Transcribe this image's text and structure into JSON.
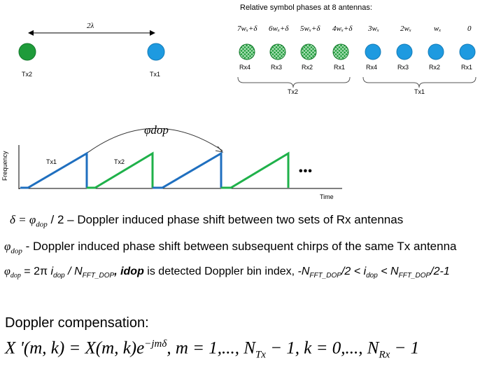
{
  "top_left": {
    "distance_label": "2λ",
    "tx2_label": "Tx2",
    "tx1_label": "Tx1",
    "tx2_color": "#1e9b3a",
    "tx1_color": "#1e9ae0"
  },
  "phases": {
    "title": "Relative symbol phases at 8 antennas:",
    "values": [
      "7wₓ+δ",
      "6wₓ+δ",
      "5wₓ+δ",
      "4wₓ+δ",
      "3wₓ",
      "2wₓ",
      "wₓ",
      "0"
    ],
    "rx_labels": [
      "Rx4",
      "Rx3",
      "Rx2",
      "Rx1",
      "Rx4",
      "Rx3",
      "Rx2",
      "Rx1"
    ],
    "group_tx2": "Tx2",
    "group_tx1": "Tx1",
    "tx2_color": "#1e9b3a",
    "tx1_color": "#1e9ae0"
  },
  "chirp": {
    "phi_label": "φdop",
    "y_axis": "Frequency",
    "x_axis": "Time",
    "tx1_label": "Tx1",
    "tx2_label": "Tx2",
    "ellipsis": "•••",
    "tx1_color": "#1f6fbf",
    "tx2_color": "#1fb14a"
  },
  "equations": {
    "line1_lhs": "δ = φ",
    "line1_sub": "dop",
    "line1_rest": "/ 2 – Doppler induced phase shift between two sets of Rx antennas",
    "line2_sym": "φ",
    "line2_sub": "dop",
    "line2_rest": " - Doppler induced phase shift between subsequent chirps of the same Tx antenna",
    "line3_a": "φ",
    "line3_a_sub": "dop",
    "line3_b": " = 2π ",
    "line3_idop": "i",
    "line3_idop_sub": "dop",
    "line3_c": " / N",
    "line3_c_sub": "FFT_DOP",
    "line3_d": ", idop",
    "line3_e": " is detected Doppler bin index, ",
    "line3_f": "-N",
    "line3_f_sub": "FFT_DOP",
    "line3_g": "/2 < i",
    "line3_g_sub": "dop",
    "line3_h": " < N",
    "line3_h_sub": "FFT_DOP",
    "line3_i": "/2-1"
  },
  "compensation": {
    "title": "Doppler compensation:",
    "formula": "X '(m, k) = X(m, k)e",
    "exponent": "−jmδ",
    "formula_rest": ", m = 1,...,  N",
    "sub_tx": "Tx",
    "formula_mid": " − 1, k = 0,...,  N",
    "sub_rx": "Rx",
    "formula_end": " − 1"
  }
}
